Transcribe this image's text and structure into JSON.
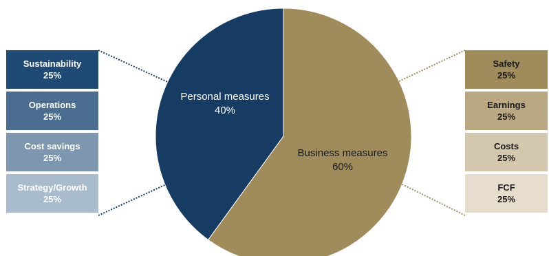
{
  "chart_data": {
    "type": "pie",
    "title": "",
    "slices": [
      {
        "label": "Personal measures",
        "value": 40,
        "value_label": "40%",
        "color": "#173c63"
      },
      {
        "label": "Business measures",
        "value": 60,
        "value_label": "60%",
        "color": "#a08b5b"
      }
    ],
    "breakdowns": [
      {
        "parent": "Personal measures",
        "side": "left",
        "items": [
          {
            "label": "Sustainability",
            "value_label": "25%",
            "value": 25,
            "color": "#1f4a74"
          },
          {
            "label": "Operations",
            "value_label": "25%",
            "value": 25,
            "color": "#4b6e90"
          },
          {
            "label": "Cost savings",
            "value_label": "25%",
            "value": 25,
            "color": "#7d97b1"
          },
          {
            "label": "Strategy/Growth",
            "value_label": "25%",
            "value": 25,
            "color": "#a9bccd"
          }
        ]
      },
      {
        "parent": "Business measures",
        "side": "right",
        "items": [
          {
            "label": "Safety",
            "value_label": "25%",
            "value": 25,
            "color": "#a08b5b"
          },
          {
            "label": "Earnings",
            "value_label": "25%",
            "value": 25,
            "color": "#b9a882"
          },
          {
            "label": "Costs",
            "value_label": "25%",
            "value": 25,
            "color": "#d3c7ad"
          },
          {
            "label": "FCF",
            "value_label": "25%",
            "value": 25,
            "color": "#e6ddcc"
          }
        ]
      }
    ]
  }
}
